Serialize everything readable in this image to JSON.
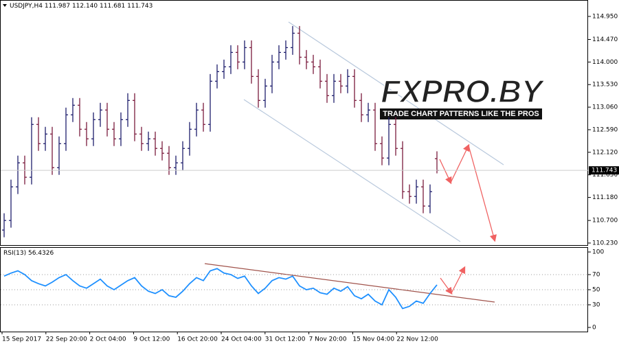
{
  "chart_data": [
    {
      "type": "ohlc",
      "symbol": "USDJPY,H4",
      "quote": {
        "open": 111.987,
        "high": 112.14,
        "low": 111.681,
        "close": 111.743
      },
      "quote_labels": {
        "open": "111.987",
        "high": "112.140",
        "low": "111.681",
        "close": "111.743"
      },
      "last": 111.743,
      "up_color": "#1c1c6b",
      "down_color": "#7a1a3c",
      "open": [
        110.5,
        110.7,
        111.4,
        111.9,
        111.6,
        112.7,
        112.3,
        112.5,
        111.8,
        112.3,
        112.9,
        113.1,
        112.6,
        112.4,
        112.8,
        113.0,
        112.6,
        112.4,
        112.8,
        113.2,
        112.5,
        112.3,
        112.4,
        112.2,
        112.1,
        111.8,
        111.9,
        112.2,
        112.6,
        113.0,
        112.7,
        113.6,
        113.8,
        113.9,
        114.2,
        114.0,
        114.3,
        113.7,
        113.2,
        113.5,
        114.0,
        114.2,
        114.3,
        114.6,
        114.1,
        114.0,
        113.9,
        113.6,
        113.3,
        113.6,
        113.5,
        113.7,
        113.2,
        112.9,
        113.0,
        112.3,
        112.0,
        112.7,
        112.2,
        111.3,
        111.2,
        111.4,
        111.0,
        111.987
      ],
      "high": [
        110.85,
        111.55,
        112.05,
        112.05,
        112.85,
        112.85,
        112.65,
        112.65,
        112.45,
        113.05,
        113.25,
        113.25,
        112.75,
        112.95,
        113.15,
        113.15,
        112.75,
        112.95,
        113.35,
        113.35,
        112.65,
        112.55,
        112.55,
        112.35,
        112.25,
        112.05,
        112.35,
        112.75,
        113.15,
        113.15,
        113.75,
        113.95,
        114.05,
        114.35,
        114.35,
        114.45,
        114.45,
        113.85,
        113.65,
        114.15,
        114.35,
        114.45,
        114.75,
        114.75,
        114.25,
        114.15,
        114.05,
        113.75,
        113.75,
        113.75,
        113.85,
        113.85,
        113.35,
        113.15,
        113.15,
        112.45,
        112.85,
        112.85,
        112.35,
        111.45,
        111.55,
        111.55,
        111.45,
        112.14
      ],
      "low": [
        110.35,
        110.55,
        111.25,
        111.45,
        111.45,
        112.15,
        112.15,
        111.65,
        111.65,
        112.15,
        112.75,
        112.45,
        112.25,
        112.25,
        112.65,
        112.45,
        112.25,
        112.25,
        112.65,
        112.35,
        112.15,
        112.15,
        112.05,
        111.95,
        111.65,
        111.65,
        111.75,
        112.05,
        112.45,
        112.55,
        112.55,
        113.45,
        113.65,
        113.75,
        113.85,
        113.85,
        113.55,
        113.05,
        113.05,
        113.35,
        113.85,
        114.05,
        114.15,
        113.95,
        113.85,
        113.75,
        113.45,
        113.15,
        113.15,
        113.35,
        113.35,
        113.05,
        112.75,
        112.75,
        112.15,
        111.85,
        111.85,
        112.05,
        111.15,
        111.05,
        111.05,
        110.85,
        110.85,
        111.681
      ],
      "close": [
        110.7,
        111.4,
        111.9,
        111.6,
        112.7,
        112.3,
        112.5,
        111.8,
        112.3,
        112.9,
        113.1,
        112.6,
        112.4,
        112.8,
        113.0,
        112.6,
        112.4,
        112.8,
        113.2,
        112.5,
        112.3,
        112.4,
        112.2,
        112.1,
        111.8,
        111.9,
        112.2,
        112.6,
        113.0,
        112.7,
        113.6,
        113.8,
        113.9,
        114.2,
        114.0,
        114.3,
        113.7,
        113.2,
        113.5,
        114.0,
        114.2,
        114.3,
        114.6,
        114.1,
        114.0,
        113.9,
        113.6,
        113.3,
        113.6,
        113.5,
        113.7,
        113.2,
        112.9,
        113.0,
        112.3,
        112.0,
        112.7,
        112.2,
        111.3,
        111.2,
        111.4,
        111.0,
        111.3,
        111.743
      ],
      "ylim": [
        110.187,
        115.292
      ],
      "yticks": [
        {
          "value": 114.95,
          "label": "114.950"
        },
        {
          "value": 114.47,
          "label": "114.470"
        },
        {
          "value": 114.0,
          "label": "114.000"
        },
        {
          "value": 113.53,
          "label": "113.530"
        },
        {
          "value": 113.06,
          "label": "113.060"
        },
        {
          "value": 112.59,
          "label": "112.590"
        },
        {
          "value": 112.12,
          "label": "112.120"
        },
        {
          "value": 111.65,
          "label": "111.650"
        },
        {
          "value": 111.18,
          "label": "111.180"
        },
        {
          "value": 110.7,
          "label": "110.700"
        },
        {
          "value": 110.23,
          "label": "110.230"
        }
      ],
      "x_labels": [
        "15 Sep 2017",
        "22 Sep 20:00",
        "2 Oct 04:00",
        "9 Oct 12:00",
        "16 Oct 20:00",
        "24 Oct 04:00",
        "31 Oct 12:00",
        "7 Nov 20:00",
        "15 Nov 04:00",
        "22 Nov 12:00"
      ]
    },
    {
      "type": "line",
      "title": "RSI(13)",
      "value": 56.4326,
      "color": "#1e90ff",
      "values": [
        68,
        72,
        75,
        70,
        62,
        58,
        55,
        60,
        66,
        70,
        62,
        55,
        52,
        58,
        64,
        55,
        50,
        56,
        62,
        66,
        55,
        48,
        45,
        50,
        42,
        40,
        48,
        58,
        66,
        62,
        75,
        78,
        72,
        70,
        65,
        68,
        55,
        45,
        52,
        62,
        66,
        64,
        68,
        55,
        50,
        52,
        46,
        44,
        52,
        48,
        54,
        42,
        38,
        44,
        35,
        30,
        50,
        40,
        25,
        28,
        35,
        32,
        45,
        56.4326
      ],
      "ylim": [
        -5.5,
        106.4
      ],
      "yticks": [
        100,
        70,
        50,
        30,
        0
      ]
    }
  ],
  "logo": {
    "title": "FXPRO.BY",
    "tagline": "TRADE CHART PATTERNS LIKE THE PROS"
  }
}
